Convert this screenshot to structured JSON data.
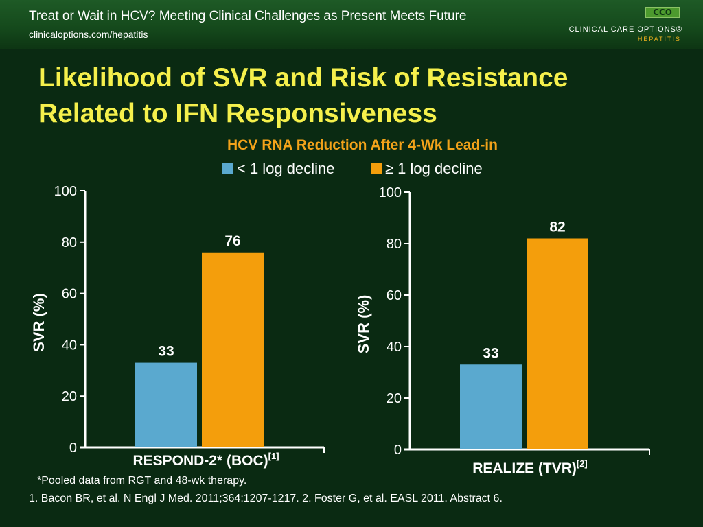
{
  "header": {
    "title": "Treat or Wait in HCV? Meeting Clinical Challenges as Present Meets Future",
    "url": "clinicaloptions.com/hepatitis"
  },
  "logo": {
    "mark": "CCO",
    "name": "CLINICAL CARE OPTIONS®",
    "subtitle": "HEPATITIS"
  },
  "slide_title": {
    "line1": "Likelihood of SVR and Risk of Resistance",
    "line2": "Related to IFN Responsiveness"
  },
  "colors": {
    "less_than_1_log": "#5aa9cf",
    "at_least_1_log": "#f49e0c",
    "title": "#f5f04c",
    "chart_title": "#f2a21a"
  },
  "chart_data": [
    {
      "type": "bar",
      "title": "HCV RNA Reduction After 4-Wk Lead-in",
      "legend": [
        "< 1 log decline",
        "≥ 1 log decline"
      ],
      "ylabel": "SVR (%)",
      "ylim": [
        0,
        100
      ],
      "yticks": [
        "0",
        "20",
        "40",
        "60",
        "80",
        "100"
      ],
      "xlabel": "RESPOND-2* (BOC)",
      "xlabel_ref": "[1]",
      "series": [
        {
          "name": "< 1 log decline",
          "values": [
            33
          ]
        },
        {
          "name": "≥ 1 log decline",
          "values": [
            76
          ]
        }
      ],
      "data_labels": [
        "33",
        "76"
      ]
    },
    {
      "type": "bar",
      "ylabel": "SVR (%)",
      "ylim": [
        0,
        100
      ],
      "yticks": [
        "0",
        "20",
        "40",
        "60",
        "80",
        "100"
      ],
      "xlabel": "REALIZE (TVR)",
      "xlabel_ref": "[2]",
      "series": [
        {
          "name": "< 1 log decline",
          "values": [
            33
          ]
        },
        {
          "name": "≥ 1 log decline",
          "values": [
            82
          ]
        }
      ],
      "data_labels": [
        "33",
        "82"
      ]
    }
  ],
  "footnote": "*Pooled data from RGT and 48-wk therapy.",
  "references": "1. Bacon BR, et al. N Engl J Med. 2011;364:1207-1217. 2. Foster G, et al. EASL 2011. Abstract 6."
}
